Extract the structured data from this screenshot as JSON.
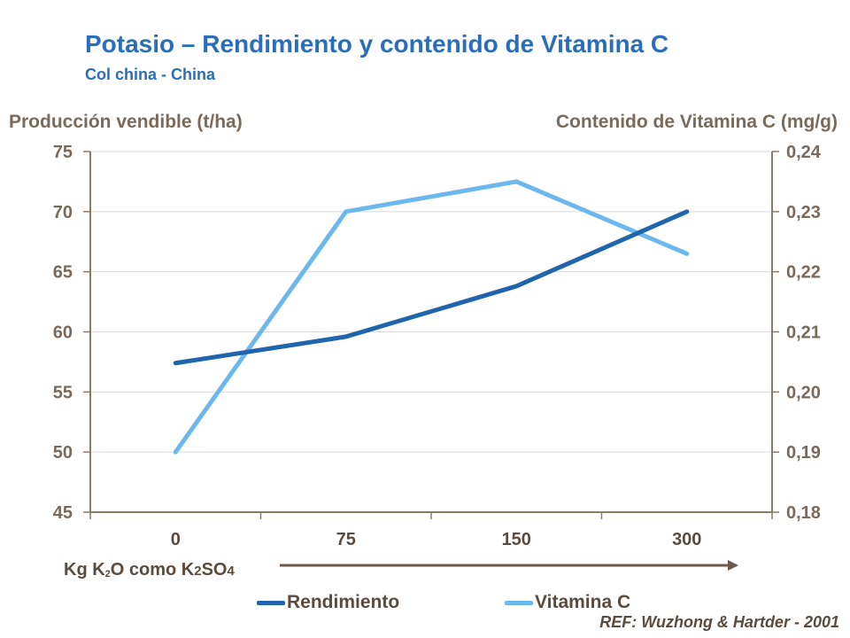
{
  "header": {
    "title": "Potasio – Rendimiento y contenido de Vitamina C",
    "subtitle": "Col china - China"
  },
  "xlabel": {
    "part1": "Kg K",
    "sub1": "2",
    "part2": "O como K",
    "sub2": "2",
    "part3": "SO",
    "sub3": "4"
  },
  "footer": {
    "ref": "REF: Wuzhong & Hartder - 2001"
  },
  "colors": {
    "rendimiento": "#1f64ad",
    "vitamina": "#6cb8ee",
    "axis": "#8a7a6a",
    "grid": "#d9d9d9"
  },
  "chart_data": {
    "type": "line",
    "title": "Potasio – Rendimiento y contenido de Vitamina C",
    "subtitle": "Col china - China",
    "categories": [
      "0",
      "75",
      "150",
      "300"
    ],
    "y_left": {
      "label": "Producción vendible (t/ha)",
      "range": [
        45,
        75
      ],
      "ticks": [
        "75",
        "70",
        "65",
        "60",
        "55",
        "50",
        "45"
      ],
      "tick_values": [
        75,
        70,
        65,
        60,
        55,
        50,
        45
      ]
    },
    "y_right": {
      "label": "Contenido de Vitamina C (mg/g)",
      "range": [
        0.18,
        0.24
      ],
      "ticks": [
        "0,24",
        "0,23",
        "0,22",
        "0,21",
        "0,20",
        "0,19",
        "0,18"
      ],
      "tick_values": [
        0.24,
        0.23,
        0.22,
        0.21,
        0.2,
        0.19,
        0.18
      ]
    },
    "grid": true,
    "legend_position": "bottom",
    "series": [
      {
        "name": "Rendimiento",
        "axis": "left",
        "values": [
          57.4,
          59.6,
          63.8,
          70.0
        ]
      },
      {
        "name": "Vitamina C",
        "axis": "right",
        "values": [
          0.19,
          0.23,
          0.235,
          0.223
        ]
      }
    ]
  }
}
